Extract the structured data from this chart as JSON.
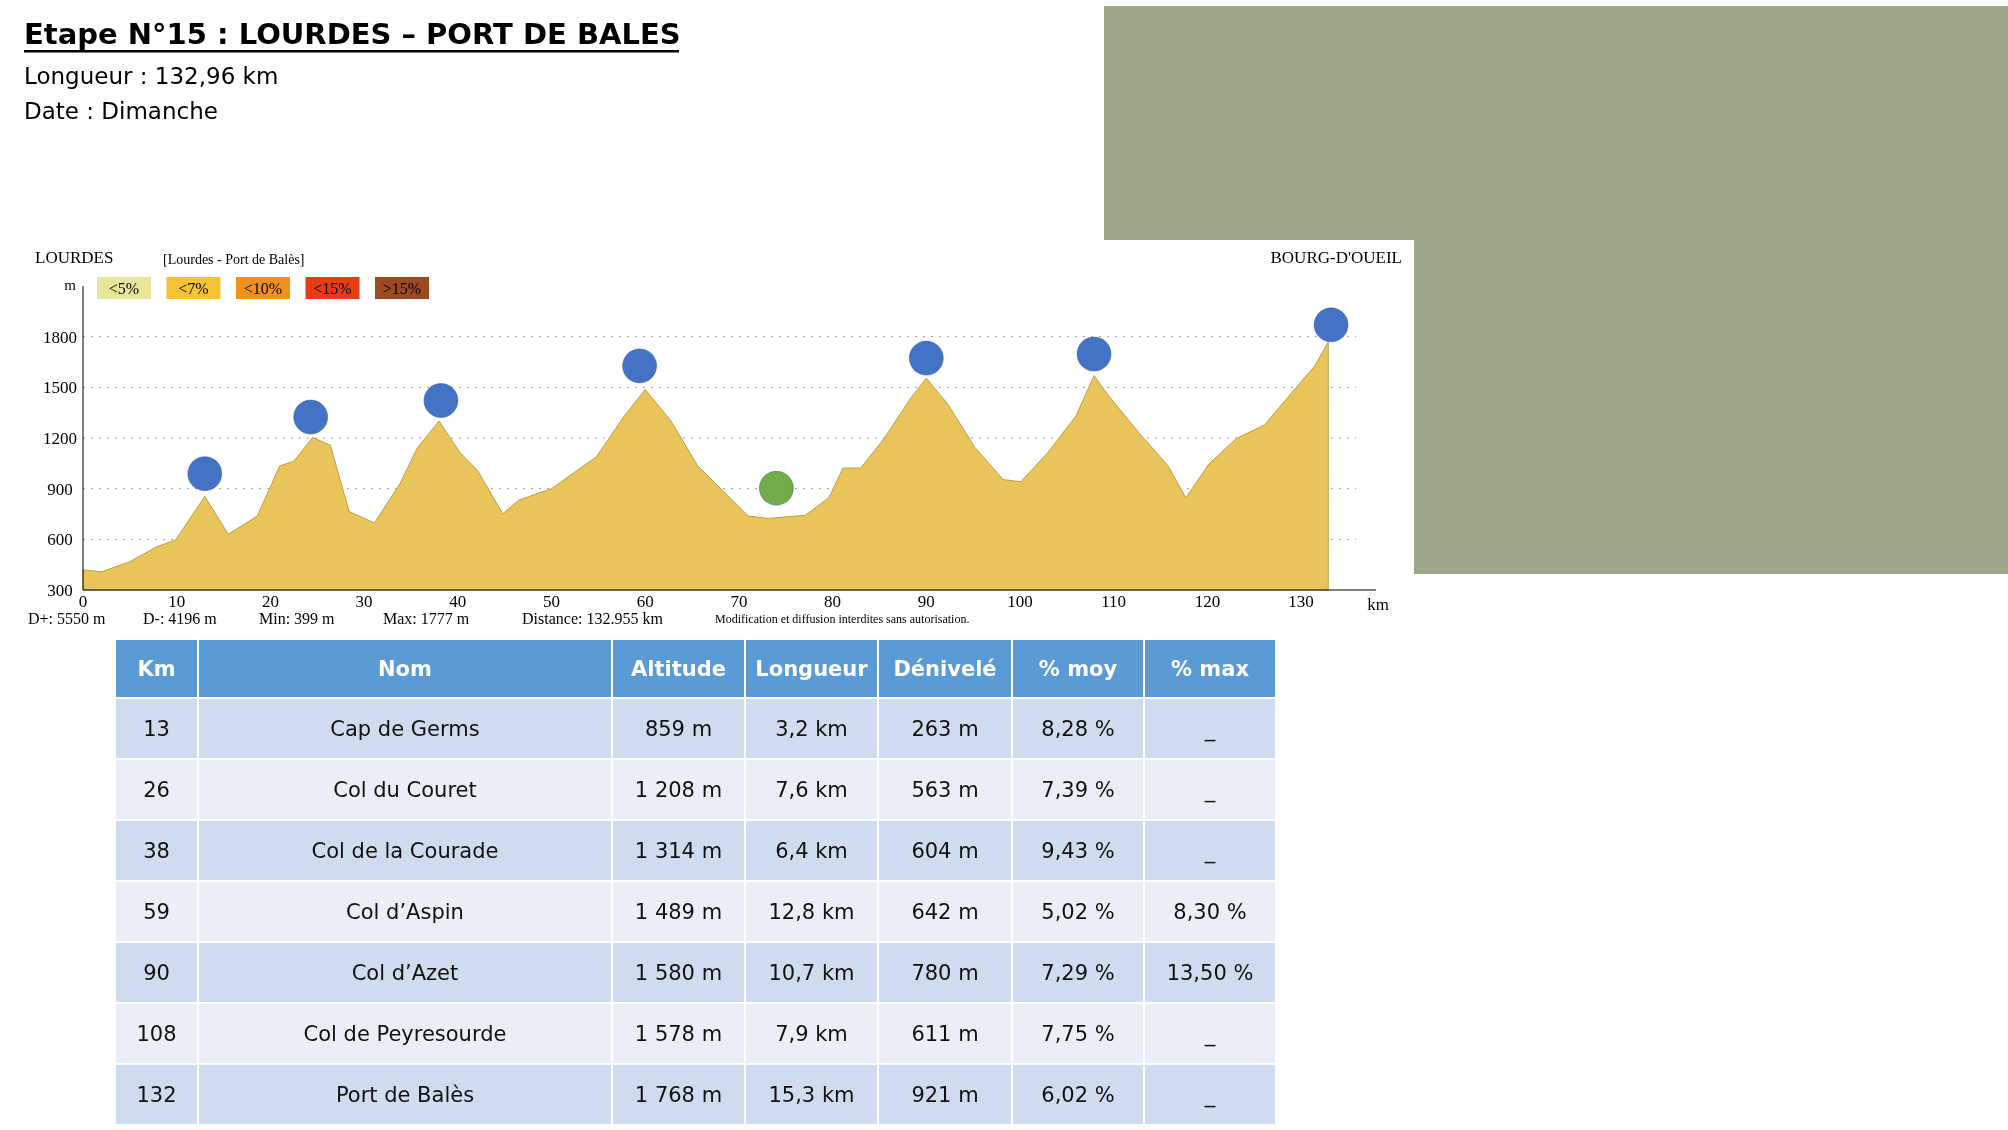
{
  "chart_data": [
    {
      "type": "area",
      "title": "Etape N°15 : LOURDES – PORT DE BALES",
      "subtitle": "Longueur : 132,96 km",
      "xlabel": "km",
      "ylabel": "m",
      "annotations": [
        "Date : Dimanche",
        "LOURDES",
        "[Lourdes - Port de Balès]",
        "BOURG-D'OUEIL",
        "<5%",
        "<7%",
        "<10%",
        "<15%",
        ">15%",
        "D+: 5550 m",
        "D-: 4196 m",
        "Min: 399 m",
        "Max: 1777 m",
        "Distance: 132.955 km",
        "Modification et diffusion interdites sans autorisation."
      ],
      "xlim": [
        0,
        138
      ],
      "xticks": [
        0,
        10,
        20,
        30,
        40,
        50,
        60,
        70,
        80,
        90,
        100,
        110,
        120,
        130
      ],
      "ylim": [
        300,
        2100
      ],
      "yticks": [
        300,
        600,
        900,
        1200,
        1500,
        1800
      ],
      "grid": "y",
      "series": [
        {
          "type": "area",
          "color": "#e9c45a",
          "x": [
            0,
            2,
            5,
            7.8,
            9.9,
            13,
            15.5,
            18.6,
            21,
            22.5,
            24.5,
            26.4,
            28.4,
            31.1,
            33.8,
            35.7,
            38,
            40.2,
            42.1,
            44.8,
            46.5,
            50,
            54.8,
            57.8,
            60,
            62.7,
            65.6,
            68.3,
            69.8,
            71,
            73.2,
            77.1,
            79.6,
            81.1,
            83,
            85.5,
            88.4,
            90,
            92.3,
            95.2,
            98.2,
            100.1,
            103,
            106,
            107.9,
            109.4,
            112.8,
            115.8,
            117.7,
            120.2,
            123.1,
            126.1,
            129,
            131.5,
            132.9
          ],
          "values": [
            419,
            408,
            468,
            554,
            597,
            854,
            630,
            738,
            1035,
            1062,
            1203,
            1157,
            765,
            697,
            927,
            1143,
            1300,
            1116,
            1008,
            751,
            832,
            900,
            1089,
            1333,
            1487,
            1305,
            1035,
            887,
            805,
            738,
            724,
            743,
            846,
            1022,
            1022,
            1197,
            1441,
            1554,
            1400,
            1143,
            954,
            941,
            1116,
            1333,
            1570,
            1454,
            1224,
            1035,
            846,
            1049,
            1197,
            1278,
            1468,
            1630,
            1770
          ]
        },
        {
          "type": "scatter",
          "color": "#4472c4",
          "marker": "circle",
          "x": [
            13,
            24.3,
            38.2,
            59.4,
            90,
            107.9,
            133.2
          ],
          "values": [
            989,
            1324,
            1422,
            1627,
            1673,
            1697,
            1870
          ]
        },
        {
          "type": "scatter",
          "color": "#70ad47",
          "marker": "circle",
          "x": [
            74
          ],
          "values": [
            903
          ]
        }
      ]
    },
    {
      "type": "other",
      "categories": [
        "Km",
        "Nom",
        "Altitude",
        "Longueur",
        "Dénivelé",
        "% moy",
        "% max"
      ],
      "cells": [
        [
          "13",
          "Cap de Germs",
          "859 m",
          "3,2 km",
          "263 m",
          "8,28 %",
          "_"
        ],
        [
          "26",
          "Col du Couret",
          "1 208 m",
          "7,6 km",
          "563 m",
          "7,39 %",
          "_"
        ],
        [
          "38",
          "Col de la Courade",
          "1 314 m",
          "6,4 km",
          "604 m",
          "9,43 %",
          "_"
        ],
        [
          "59",
          "Col d’Aspin",
          "1 489 m",
          "12,8 km",
          "642 m",
          "5,02 %",
          "8,30 %"
        ],
        [
          "90",
          "Col d’Azet",
          "1 580 m",
          "10,7 km",
          "780 m",
          "7,29 %",
          "13,50 %"
        ],
        [
          "108",
          "Col de Peyresourde",
          "1 578 m",
          "7,9 km",
          "611 m",
          "7,75 %",
          "_"
        ],
        [
          "132",
          "Port de Balès",
          "1 768 m",
          "15,3 km",
          "921 m",
          "6,02 %",
          "_"
        ]
      ]
    }
  ]
}
